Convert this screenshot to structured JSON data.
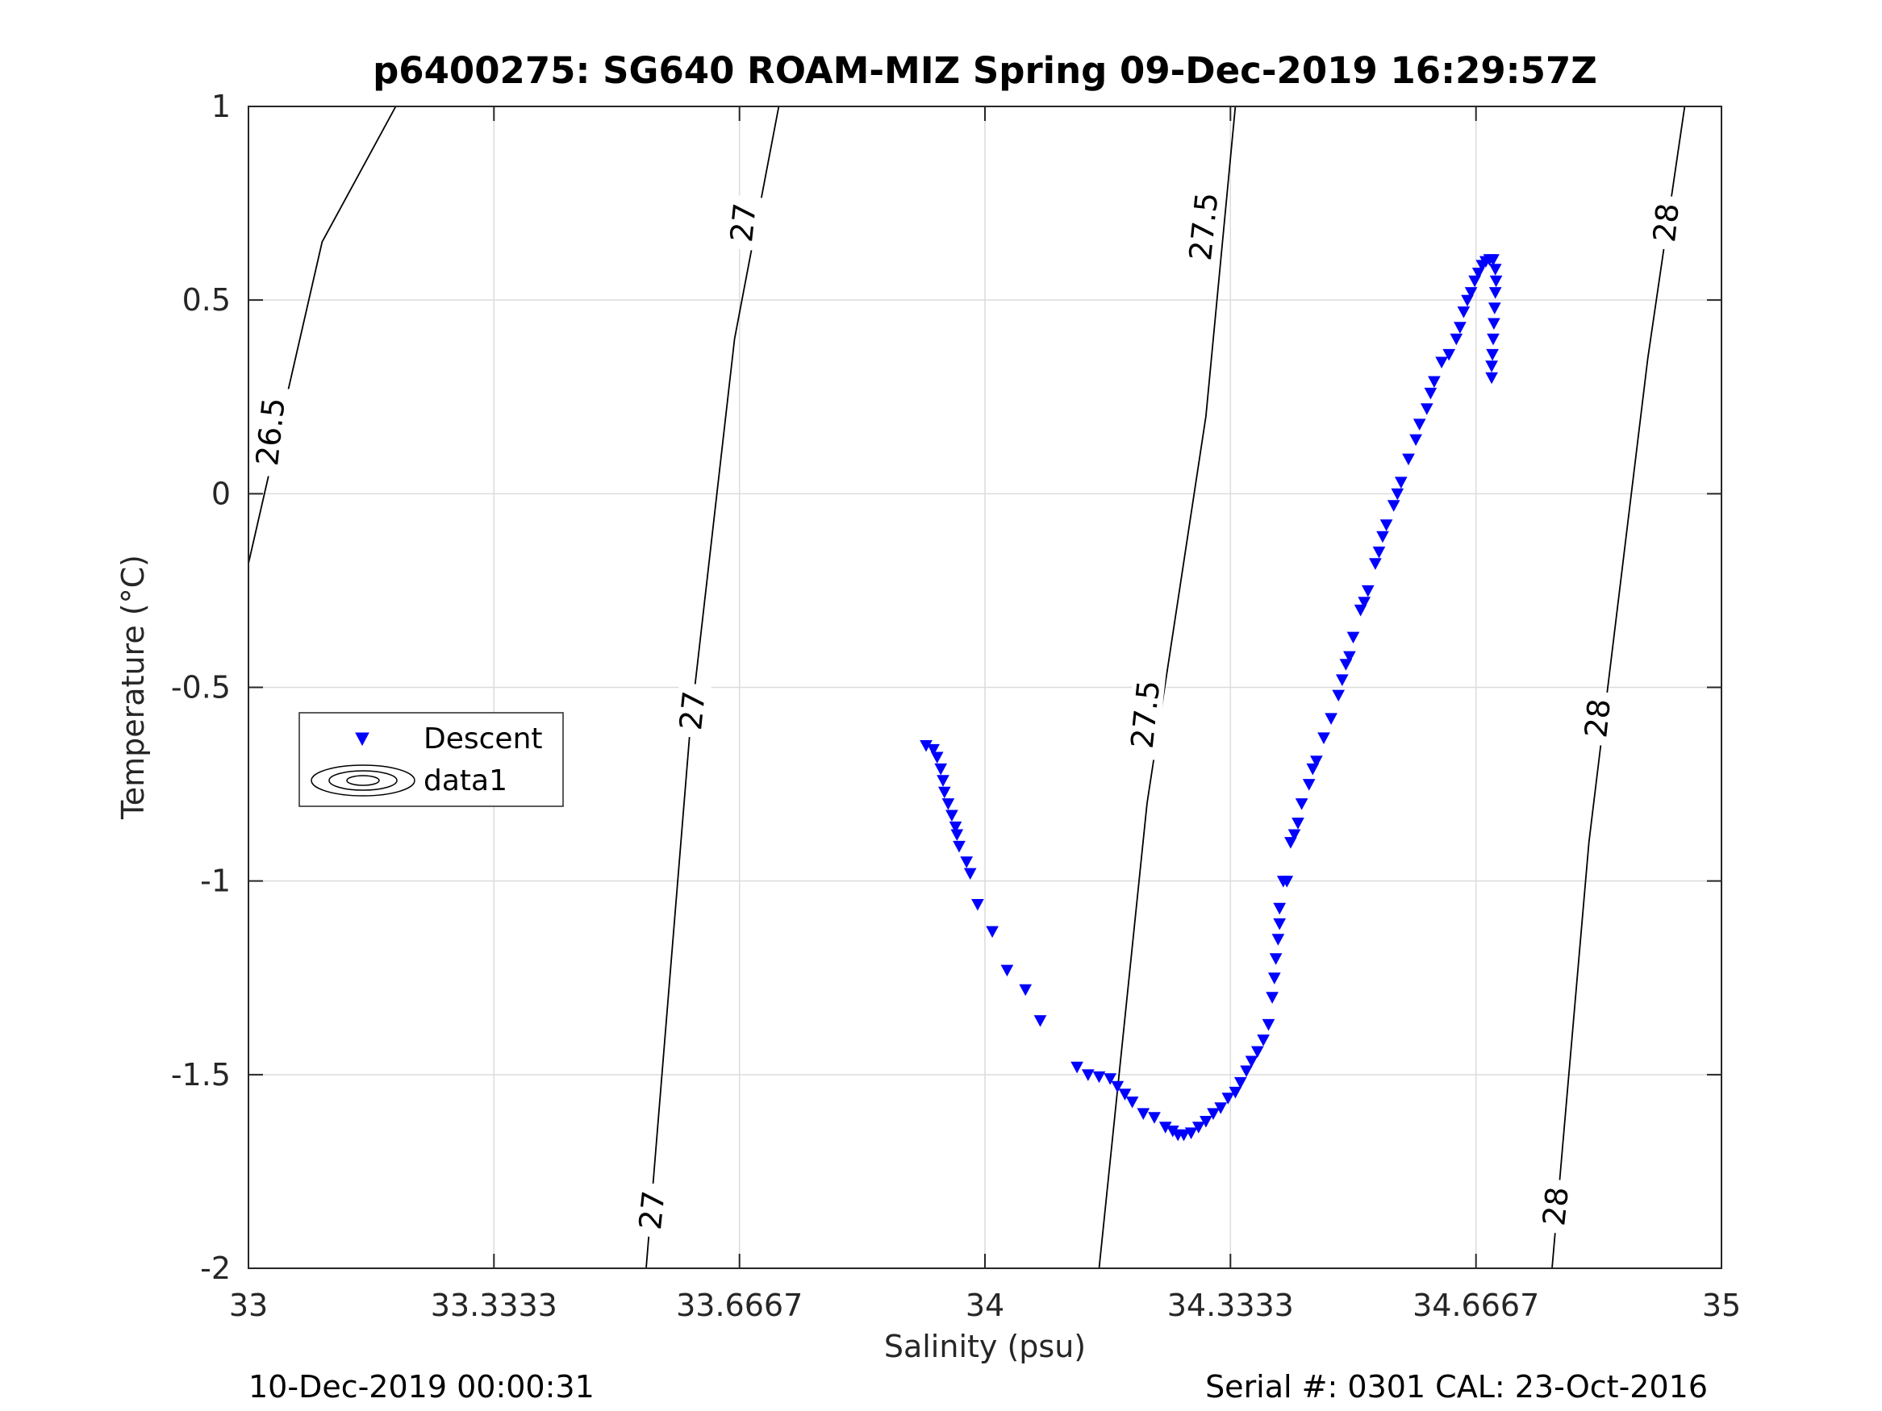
{
  "chart_data": {
    "type": "scatter",
    "title": "p6400275: SG640 ROAM-MIZ Spring 09-Dec-2019 16:29:57Z",
    "xlabel": "Salinity (psu)",
    "ylabel": "Temperature (°C)",
    "xlim": [
      33,
      35
    ],
    "ylim": [
      -2,
      1
    ],
    "xticks": [
      33,
      33.3333,
      33.6667,
      34,
      34.3333,
      34.6667,
      35
    ],
    "xtick_labels": [
      "33",
      "33.3333",
      "33.6667",
      "34",
      "34.3333",
      "34.6667",
      "35"
    ],
    "yticks": [
      -2,
      -1.5,
      -1,
      -0.5,
      0,
      0.5,
      1
    ],
    "ytick_labels": [
      "-2",
      "-1.5",
      "-1",
      "-0.5",
      "0",
      "0.5",
      "1"
    ],
    "grid": true,
    "legend": {
      "position": "left-middle",
      "entries": [
        "Descent",
        "data1"
      ]
    },
    "colors": {
      "descent": "#0000ff",
      "contour": "#000000",
      "grid": "#dcdcdc",
      "axis": "#262626"
    },
    "contours": [
      {
        "level": "26.5",
        "points": [
          [
            33.0,
            -0.18
          ],
          [
            33.1,
            0.65
          ],
          [
            33.2,
            1.0
          ]
        ],
        "labels": [
          {
            "x": 33.03,
            "y": 0.16,
            "text": "26.5"
          }
        ]
      },
      {
        "level": "27",
        "points": [
          [
            33.54,
            -2.0
          ],
          [
            33.6,
            -0.6
          ],
          [
            33.66,
            0.4
          ],
          [
            33.72,
            1.0
          ]
        ],
        "labels": [
          {
            "x": 33.548,
            "y": -1.85,
            "text": "27"
          },
          {
            "x": 33.603,
            "y": -0.56,
            "text": "27"
          },
          {
            "x": 33.672,
            "y": 0.7,
            "text": "27"
          }
        ]
      },
      {
        "level": "27.5",
        "points": [
          [
            34.155,
            -2.0
          ],
          [
            34.22,
            -0.8
          ],
          [
            34.3,
            0.2
          ],
          [
            34.34,
            1.0
          ]
        ],
        "labels": [
          {
            "x": 34.218,
            "y": -0.57,
            "text": "27.5"
          },
          {
            "x": 34.297,
            "y": 0.69,
            "text": "27.5"
          }
        ]
      },
      {
        "level": "28",
        "points": [
          [
            34.77,
            -2.0
          ],
          [
            34.82,
            -0.9
          ],
          [
            34.9,
            0.35
          ],
          [
            34.95,
            1.0
          ]
        ],
        "labels": [
          {
            "x": 34.775,
            "y": -1.84,
            "text": "28"
          },
          {
            "x": 34.832,
            "y": -0.58,
            "text": "28"
          },
          {
            "x": 34.925,
            "y": 0.7,
            "text": "28"
          }
        ]
      }
    ],
    "series": [
      {
        "name": "Descent",
        "marker": "triangle-down",
        "points": [
          [
            33.92,
            -0.65
          ],
          [
            33.93,
            -0.66
          ],
          [
            33.935,
            -0.68
          ],
          [
            33.94,
            -0.71
          ],
          [
            33.943,
            -0.74
          ],
          [
            33.945,
            -0.77
          ],
          [
            33.95,
            -0.8
          ],
          [
            33.955,
            -0.83
          ],
          [
            33.96,
            -0.86
          ],
          [
            33.962,
            -0.88
          ],
          [
            33.965,
            -0.91
          ],
          [
            33.975,
            -0.95
          ],
          [
            33.98,
            -0.98
          ],
          [
            33.99,
            -1.06
          ],
          [
            34.01,
            -1.13
          ],
          [
            34.03,
            -1.23
          ],
          [
            34.055,
            -1.28
          ],
          [
            34.075,
            -1.36
          ],
          [
            34.125,
            -1.48
          ],
          [
            34.14,
            -1.5
          ],
          [
            34.155,
            -1.505
          ],
          [
            34.17,
            -1.51
          ],
          [
            34.18,
            -1.53
          ],
          [
            34.19,
            -1.55
          ],
          [
            34.2,
            -1.57
          ],
          [
            34.215,
            -1.6
          ],
          [
            34.23,
            -1.61
          ],
          [
            34.245,
            -1.635
          ],
          [
            34.255,
            -1.645
          ],
          [
            34.262,
            -1.655
          ],
          [
            34.27,
            -1.655
          ],
          [
            34.28,
            -1.65
          ],
          [
            34.29,
            -1.635
          ],
          [
            34.3,
            -1.62
          ],
          [
            34.31,
            -1.6
          ],
          [
            34.32,
            -1.585
          ],
          [
            34.33,
            -1.56
          ],
          [
            34.34,
            -1.545
          ],
          [
            34.347,
            -1.52
          ],
          [
            34.355,
            -1.49
          ],
          [
            34.362,
            -1.465
          ],
          [
            34.37,
            -1.44
          ],
          [
            34.378,
            -1.41
          ],
          [
            34.385,
            -1.37
          ],
          [
            34.39,
            -1.3
          ],
          [
            34.393,
            -1.25
          ],
          [
            34.395,
            -1.2
          ],
          [
            34.398,
            -1.15
          ],
          [
            34.4,
            -1.11
          ],
          [
            34.4,
            -1.07
          ],
          [
            34.405,
            -1.0
          ],
          [
            34.41,
            -1.0
          ],
          [
            34.415,
            -0.9
          ],
          [
            34.42,
            -0.88
          ],
          [
            34.425,
            -0.85
          ],
          [
            34.43,
            -0.8
          ],
          [
            34.44,
            -0.75
          ],
          [
            34.445,
            -0.71
          ],
          [
            34.45,
            -0.69
          ],
          [
            34.46,
            -0.63
          ],
          [
            34.47,
            -0.58
          ],
          [
            34.48,
            -0.52
          ],
          [
            34.485,
            -0.48
          ],
          [
            34.49,
            -0.44
          ],
          [
            34.495,
            -0.42
          ],
          [
            34.5,
            -0.37
          ],
          [
            34.51,
            -0.3
          ],
          [
            34.515,
            -0.28
          ],
          [
            34.52,
            -0.25
          ],
          [
            34.53,
            -0.18
          ],
          [
            34.535,
            -0.15
          ],
          [
            34.54,
            -0.11
          ],
          [
            34.545,
            -0.08
          ],
          [
            34.555,
            -0.03
          ],
          [
            34.56,
            0.0
          ],
          [
            34.565,
            0.03
          ],
          [
            34.575,
            0.09
          ],
          [
            34.585,
            0.14
          ],
          [
            34.59,
            0.18
          ],
          [
            34.6,
            0.22
          ],
          [
            34.605,
            0.26
          ],
          [
            34.61,
            0.29
          ],
          [
            34.62,
            0.34
          ],
          [
            34.63,
            0.36
          ],
          [
            34.64,
            0.4
          ],
          [
            34.645,
            0.43
          ],
          [
            34.65,
            0.47
          ],
          [
            34.655,
            0.5
          ],
          [
            34.66,
            0.52
          ],
          [
            34.665,
            0.55
          ],
          [
            34.67,
            0.57
          ],
          [
            34.675,
            0.59
          ],
          [
            34.68,
            0.6
          ],
          [
            34.685,
            0.605
          ],
          [
            34.69,
            0.605
          ],
          [
            34.693,
            0.58
          ],
          [
            34.694,
            0.55
          ],
          [
            34.693,
            0.52
          ],
          [
            34.692,
            0.48
          ],
          [
            34.691,
            0.44
          ],
          [
            34.69,
            0.4
          ],
          [
            34.689,
            0.36
          ],
          [
            34.688,
            0.33
          ],
          [
            34.688,
            0.3
          ]
        ]
      }
    ]
  },
  "footer": {
    "left": "10-Dec-2019 00:00:31",
    "right": "Serial #: 0301  CAL: 23-Oct-2016"
  }
}
